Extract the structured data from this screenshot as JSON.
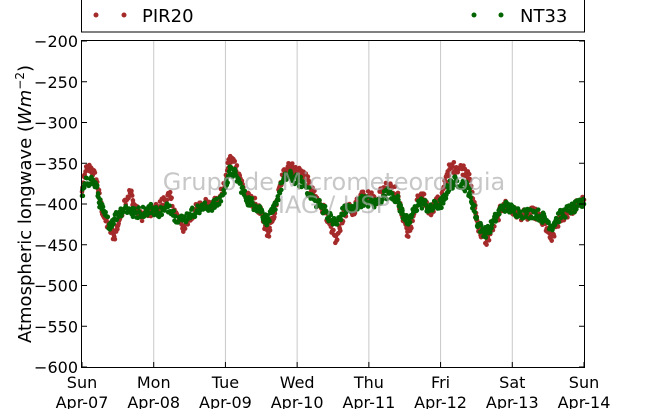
{
  "chart_data": {
    "type": "scatter",
    "ylabel": "Atmospheric longwave (",
    "ylabel_math": "Wm",
    "ylabel_exp": "−2",
    "ylabel_end": ")",
    "ylim": [
      -600,
      -200
    ],
    "yticks": [
      -200,
      -250,
      -300,
      -350,
      -400,
      -450,
      -500,
      -550,
      -600
    ],
    "ytick_labels": [
      "−200",
      "−250",
      "−300",
      "−350",
      "−400",
      "−450",
      "−500",
      "−550",
      "−600"
    ],
    "xlim": [
      "2013-04-07",
      "2013-04-14"
    ],
    "x_ticks": [
      {
        "day": "Sun",
        "date": "Apr-07"
      },
      {
        "day": "Mon",
        "date": "Apr-08"
      },
      {
        "day": "Tue",
        "date": "Apr-09"
      },
      {
        "day": "Wed",
        "date": "Apr-10"
      },
      {
        "day": "Thu",
        "date": "Apr-11"
      },
      {
        "day": "Fri",
        "date": "Apr-12"
      },
      {
        "day": "Sat",
        "date": "Apr-13"
      },
      {
        "day": "Sun",
        "date": "Apr-14"
      }
    ],
    "grid": "vertical",
    "legend_placement": "top",
    "series": [
      {
        "name": "PIR20",
        "color": "#a52a2a",
        "points": [
          [
            0.0,
            -385
          ],
          [
            0.05,
            -360
          ],
          [
            0.12,
            -355
          ],
          [
            0.2,
            -370
          ],
          [
            0.25,
            -395
          ],
          [
            0.3,
            -415
          ],
          [
            0.38,
            -430
          ],
          [
            0.45,
            -440
          ],
          [
            0.52,
            -420
          ],
          [
            0.6,
            -395
          ],
          [
            0.68,
            -385
          ],
          [
            0.72,
            -400
          ],
          [
            0.8,
            -415
          ],
          [
            0.9,
            -412
          ],
          [
            0.98,
            -410
          ],
          [
            1.05,
            -405
          ],
          [
            1.15,
            -395
          ],
          [
            1.22,
            -390
          ],
          [
            1.3,
            -410
          ],
          [
            1.4,
            -430
          ],
          [
            1.5,
            -420
          ],
          [
            1.6,
            -405
          ],
          [
            1.7,
            -400
          ],
          [
            1.8,
            -398
          ],
          [
            1.9,
            -395
          ],
          [
            2.0,
            -375
          ],
          [
            2.05,
            -345
          ],
          [
            2.12,
            -348
          ],
          [
            2.2,
            -365
          ],
          [
            2.28,
            -390
          ],
          [
            2.35,
            -395
          ],
          [
            2.42,
            -400
          ],
          [
            2.5,
            -412
          ],
          [
            2.55,
            -430
          ],
          [
            2.6,
            -435
          ],
          [
            2.66,
            -420
          ],
          [
            2.72,
            -395
          ],
          [
            2.8,
            -365
          ],
          [
            2.88,
            -350
          ],
          [
            2.95,
            -358
          ],
          [
            3.02,
            -360
          ],
          [
            3.1,
            -362
          ],
          [
            3.18,
            -380
          ],
          [
            3.25,
            -392
          ],
          [
            3.32,
            -400
          ],
          [
            3.4,
            -410
          ],
          [
            3.48,
            -435
          ],
          [
            3.55,
            -445
          ],
          [
            3.62,
            -420
          ],
          [
            3.7,
            -405
          ],
          [
            3.78,
            -410
          ],
          [
            3.85,
            -395
          ],
          [
            3.92,
            -385
          ],
          [
            4.0,
            -390
          ],
          [
            4.1,
            -395
          ],
          [
            4.2,
            -380
          ],
          [
            4.3,
            -375
          ],
          [
            4.4,
            -390
          ],
          [
            4.45,
            -410
          ],
          [
            4.5,
            -420
          ],
          [
            4.55,
            -440
          ],
          [
            4.62,
            -415
          ],
          [
            4.7,
            -390
          ],
          [
            4.78,
            -395
          ],
          [
            4.85,
            -410
          ],
          [
            4.92,
            -400
          ],
          [
            5.0,
            -395
          ],
          [
            5.05,
            -380
          ],
          [
            5.1,
            -360
          ],
          [
            5.15,
            -355
          ],
          [
            5.22,
            -355
          ],
          [
            5.3,
            -357
          ],
          [
            5.38,
            -360
          ],
          [
            5.42,
            -380
          ],
          [
            5.48,
            -405
          ],
          [
            5.52,
            -425
          ],
          [
            5.58,
            -440
          ],
          [
            5.65,
            -445
          ],
          [
            5.72,
            -430
          ],
          [
            5.8,
            -415
          ],
          [
            5.88,
            -400
          ],
          [
            5.95,
            -405
          ],
          [
            6.02,
            -410
          ],
          [
            6.1,
            -412
          ],
          [
            6.2,
            -415
          ],
          [
            6.3,
            -410
          ],
          [
            6.4,
            -420
          ],
          [
            6.48,
            -430
          ],
          [
            6.55,
            -445
          ],
          [
            6.62,
            -425
          ],
          [
            6.7,
            -415
          ],
          [
            6.78,
            -410
          ],
          [
            6.85,
            -405
          ],
          [
            6.92,
            -400
          ],
          [
            7.0,
            -395
          ]
        ]
      },
      {
        "name": "NT33",
        "color": "#006400",
        "points": [
          [
            0.0,
            -390
          ],
          [
            0.05,
            -375
          ],
          [
            0.12,
            -370
          ],
          [
            0.2,
            -378
          ],
          [
            0.25,
            -400
          ],
          [
            0.3,
            -410
          ],
          [
            0.38,
            -425
          ],
          [
            0.45,
            -418
          ],
          [
            0.52,
            -410
          ],
          [
            0.6,
            -405
          ],
          [
            0.68,
            -408
          ],
          [
            0.72,
            -412
          ],
          [
            0.8,
            -410
          ],
          [
            0.9,
            -408
          ],
          [
            0.98,
            -405
          ],
          [
            1.05,
            -410
          ],
          [
            1.15,
            -408
          ],
          [
            1.22,
            -402
          ],
          [
            1.3,
            -415
          ],
          [
            1.4,
            -420
          ],
          [
            1.5,
            -412
          ],
          [
            1.6,
            -408
          ],
          [
            1.7,
            -405
          ],
          [
            1.8,
            -402
          ],
          [
            1.9,
            -400
          ],
          [
            2.0,
            -380
          ],
          [
            2.05,
            -360
          ],
          [
            2.12,
            -362
          ],
          [
            2.2,
            -375
          ],
          [
            2.28,
            -392
          ],
          [
            2.35,
            -398
          ],
          [
            2.42,
            -402
          ],
          [
            2.5,
            -408
          ],
          [
            2.55,
            -418
          ],
          [
            2.6,
            -420
          ],
          [
            2.66,
            -410
          ],
          [
            2.72,
            -395
          ],
          [
            2.8,
            -372
          ],
          [
            2.88,
            -365
          ],
          [
            2.95,
            -368
          ],
          [
            3.02,
            -372
          ],
          [
            3.1,
            -375
          ],
          [
            3.18,
            -388
          ],
          [
            3.25,
            -396
          ],
          [
            3.32,
            -402
          ],
          [
            3.4,
            -408
          ],
          [
            3.48,
            -420
          ],
          [
            3.55,
            -425
          ],
          [
            3.62,
            -412
          ],
          [
            3.7,
            -405
          ],
          [
            3.78,
            -408
          ],
          [
            3.85,
            -400
          ],
          [
            3.92,
            -395
          ],
          [
            4.0,
            -398
          ],
          [
            4.1,
            -400
          ],
          [
            4.2,
            -390
          ],
          [
            4.3,
            -385
          ],
          [
            4.4,
            -395
          ],
          [
            4.45,
            -408
          ],
          [
            4.5,
            -415
          ],
          [
            4.55,
            -425
          ],
          [
            4.62,
            -410
          ],
          [
            4.7,
            -398
          ],
          [
            4.78,
            -400
          ],
          [
            4.85,
            -408
          ],
          [
            4.92,
            -402
          ],
          [
            5.0,
            -400
          ],
          [
            5.05,
            -395
          ],
          [
            5.1,
            -380
          ],
          [
            5.15,
            -375
          ],
          [
            5.22,
            -372
          ],
          [
            5.3,
            -375
          ],
          [
            5.38,
            -380
          ],
          [
            5.42,
            -392
          ],
          [
            5.48,
            -410
          ],
          [
            5.52,
            -425
          ],
          [
            5.58,
            -432
          ],
          [
            5.65,
            -435
          ],
          [
            5.72,
            -425
          ],
          [
            5.8,
            -412
          ],
          [
            5.88,
            -402
          ],
          [
            5.95,
            -405
          ],
          [
            6.02,
            -408
          ],
          [
            6.1,
            -410
          ],
          [
            6.2,
            -412
          ],
          [
            6.3,
            -410
          ],
          [
            6.4,
            -415
          ],
          [
            6.48,
            -420
          ],
          [
            6.55,
            -428
          ],
          [
            6.62,
            -418
          ],
          [
            6.7,
            -412
          ],
          [
            6.78,
            -408
          ],
          [
            6.85,
            -405
          ],
          [
            6.92,
            -402
          ],
          [
            7.0,
            -400
          ]
        ]
      }
    ]
  },
  "watermark": {
    "line1": "Grupo de Micrometeorologia",
    "line2": "IAG / USP"
  }
}
